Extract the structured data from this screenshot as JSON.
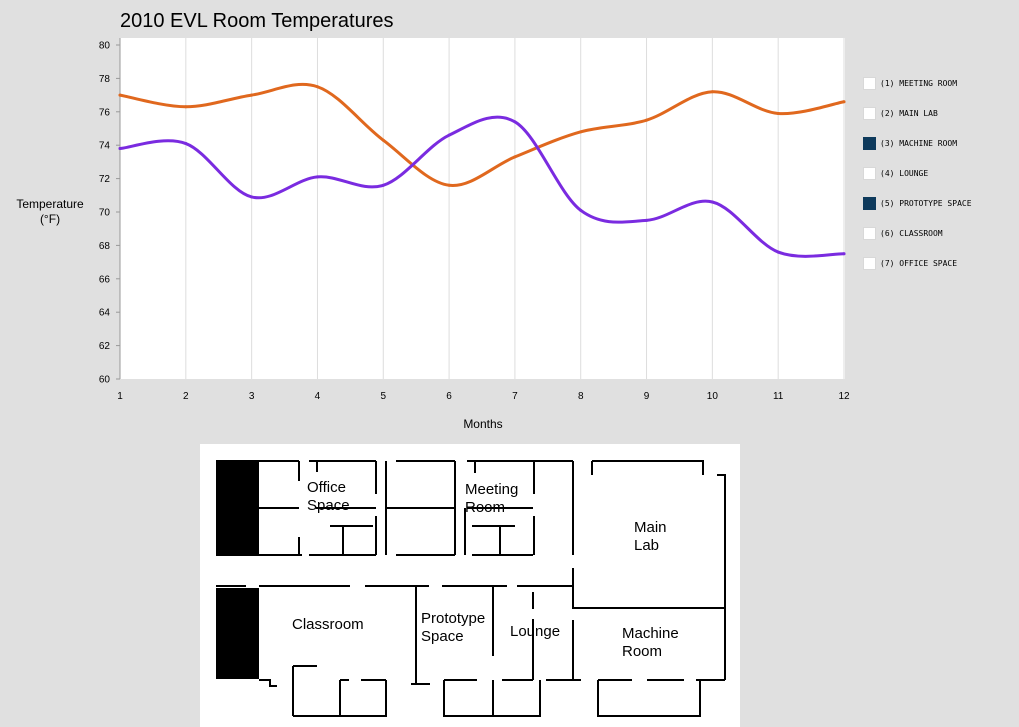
{
  "chart_data": {
    "type": "line",
    "title": "2010 EVL Room Temperatures",
    "xlabel": "Months",
    "ylabel": "Temperature\n(°F)",
    "x": [
      1,
      2,
      3,
      4,
      5,
      6,
      7,
      8,
      9,
      10,
      11,
      12
    ],
    "xticks": [
      "1",
      "2",
      "3",
      "4",
      "5",
      "6",
      "7",
      "8",
      "9",
      "10",
      "11",
      "12"
    ],
    "yticks": [
      "60",
      "62",
      "64",
      "66",
      "68",
      "70",
      "72",
      "74",
      "76",
      "78",
      "80"
    ],
    "ylim": [
      60,
      80
    ],
    "xlim": [
      1,
      12
    ],
    "grid": "vertical",
    "legend_position": "right",
    "series": [
      {
        "name": "(3) MACHINE ROOM",
        "color": "#e0681e",
        "values": [
          77.0,
          76.3,
          77.0,
          77.5,
          74.3,
          71.6,
          73.3,
          74.8,
          75.5,
          77.2,
          75.9,
          76.6
        ]
      },
      {
        "name": "(5) PROTOTYPE SPACE",
        "color": "#7a2be0",
        "values": [
          73.8,
          74.1,
          70.9,
          72.1,
          71.6,
          74.6,
          75.4,
          70.1,
          69.5,
          70.6,
          67.6,
          67.5
        ]
      }
    ]
  },
  "legend": [
    {
      "label": "(1) MEETING ROOM",
      "checked": false
    },
    {
      "label": "(2) MAIN LAB",
      "checked": false
    },
    {
      "label": "(3) MACHINE ROOM",
      "checked": true
    },
    {
      "label": "(4) LOUNGE",
      "checked": false
    },
    {
      "label": "(5) PROTOTYPE SPACE",
      "checked": true
    },
    {
      "label": "(6) CLASSROOM",
      "checked": false
    },
    {
      "label": "(7) OFFICE SPACE",
      "checked": false
    }
  ],
  "floorplan": {
    "rooms": {
      "office": "Office\nSpace",
      "meeting": "Meeting\nRoom",
      "mainlab": "Main\nLab",
      "classroom": "Classroom",
      "prototype": "Prototype\nSpace",
      "lounge": "Lounge",
      "machine": "Machine\nRoom"
    }
  }
}
